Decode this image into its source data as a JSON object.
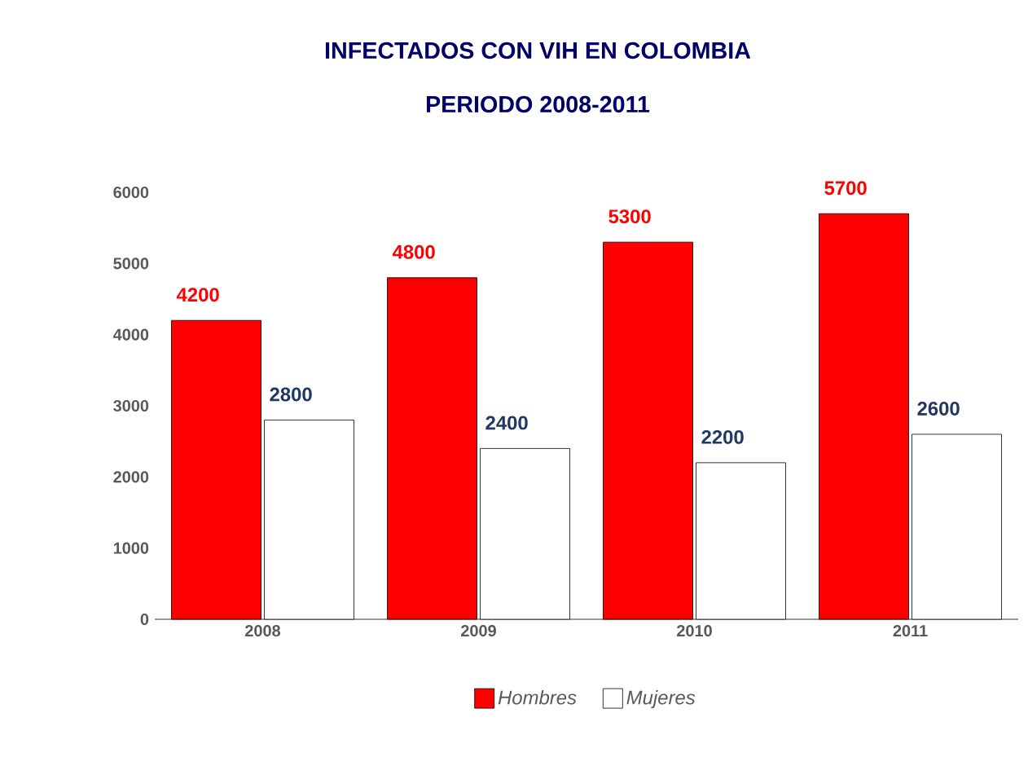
{
  "chart_data": {
    "type": "bar",
    "title": "INFECTADOS CON VIH EN COLOMBIA",
    "subtitle": "PERIODO 2008-2011",
    "categories": [
      "2008",
      "2009",
      "2010",
      "2011"
    ],
    "series": [
      {
        "name": "Hombres",
        "color": "#ff0000",
        "values": [
          4200,
          4800,
          5300,
          5700
        ]
      },
      {
        "name": "Mujeres",
        "color": "#ffffff",
        "values": [
          2800,
          2400,
          2200,
          2600
        ]
      }
    ],
    "ylim": [
      0,
      6000
    ],
    "yticks": [
      0,
      1000,
      2000,
      3000,
      4000,
      5000,
      6000
    ],
    "data_labels": true,
    "legend": "bottom",
    "grid": false
  }
}
